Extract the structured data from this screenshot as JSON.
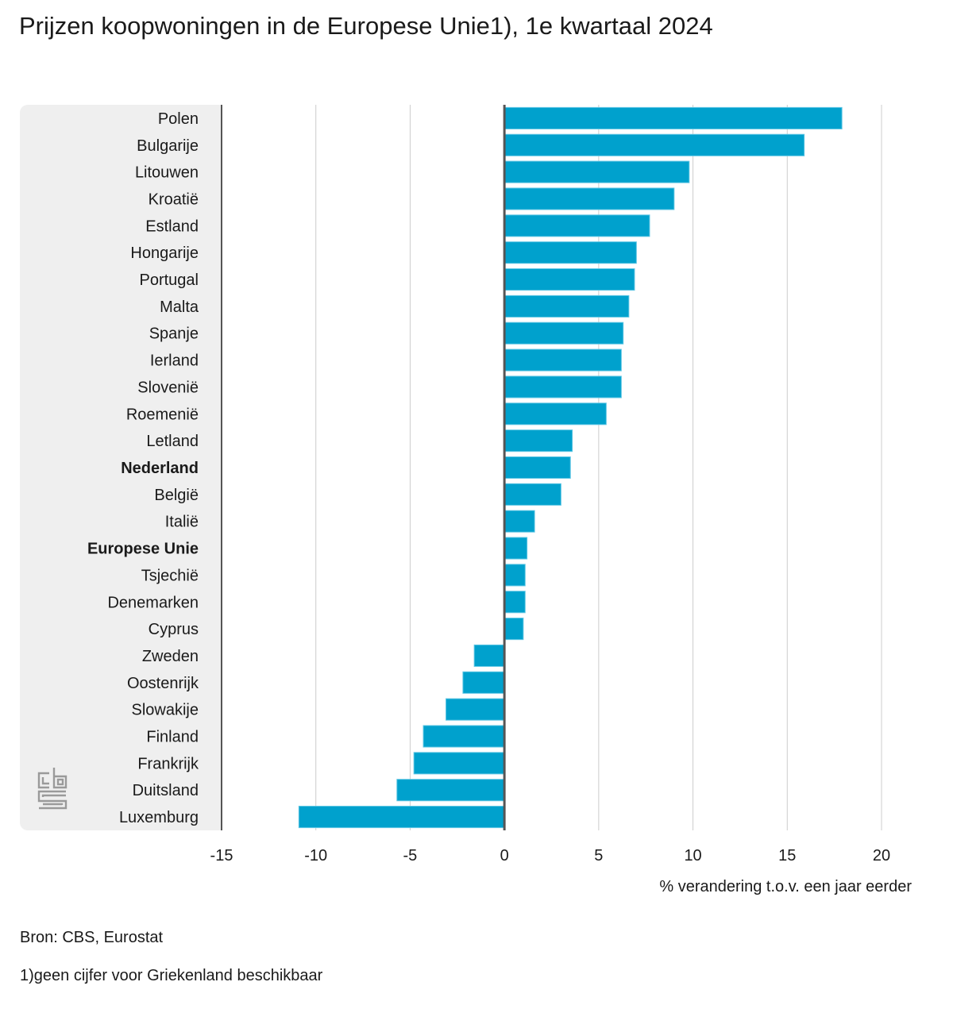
{
  "title": "Prijzen koopwoningen in de Europese Unie1), 1e kwartaal 2024",
  "source": "Bron: CBS, Eurostat",
  "footnote": "1)geen cijfer voor Griekenland beschikbaar",
  "logo": "cbs-logo-icon",
  "colors": {
    "bar": "#00a1cd",
    "panel": "#efefef",
    "axis": "#555555",
    "grid": "#cccccc"
  },
  "chart_data": {
    "type": "bar",
    "orientation": "horizontal",
    "title": "Prijzen koopwoningen in de Europese Unie1), 1e kwartaal 2024",
    "xlabel": "% verandering t.o.v. een jaar eerder",
    "ylabel": "",
    "xlim": [
      -15,
      20
    ],
    "xticks": [
      -15,
      -10,
      -5,
      0,
      5,
      10,
      15,
      20
    ],
    "grid": true,
    "categories": [
      "Polen",
      "Bulgarije",
      "Litouwen",
      "Kroatië",
      "Estland",
      "Hongarije",
      "Portugal",
      "Malta",
      "Spanje",
      "Ierland",
      "Slovenië",
      "Roemenië",
      "Letland",
      "Nederland",
      "België",
      "Italië",
      "Europese Unie",
      "Tsjechië",
      "Denemarken",
      "Cyprus",
      "Zweden",
      "Oostenrijk",
      "Slowakije",
      "Finland",
      "Frankrijk",
      "Duitsland",
      "Luxemburg"
    ],
    "bold_categories": [
      "Nederland",
      "Europese Unie"
    ],
    "values": [
      17.9,
      15.9,
      9.8,
      9.0,
      7.7,
      7.0,
      6.9,
      6.6,
      6.3,
      6.2,
      6.2,
      5.4,
      3.6,
      3.5,
      3.0,
      1.6,
      1.2,
      1.1,
      1.1,
      1.0,
      -1.6,
      -2.2,
      -3.1,
      -4.3,
      -4.8,
      -5.7,
      -10.9
    ]
  }
}
